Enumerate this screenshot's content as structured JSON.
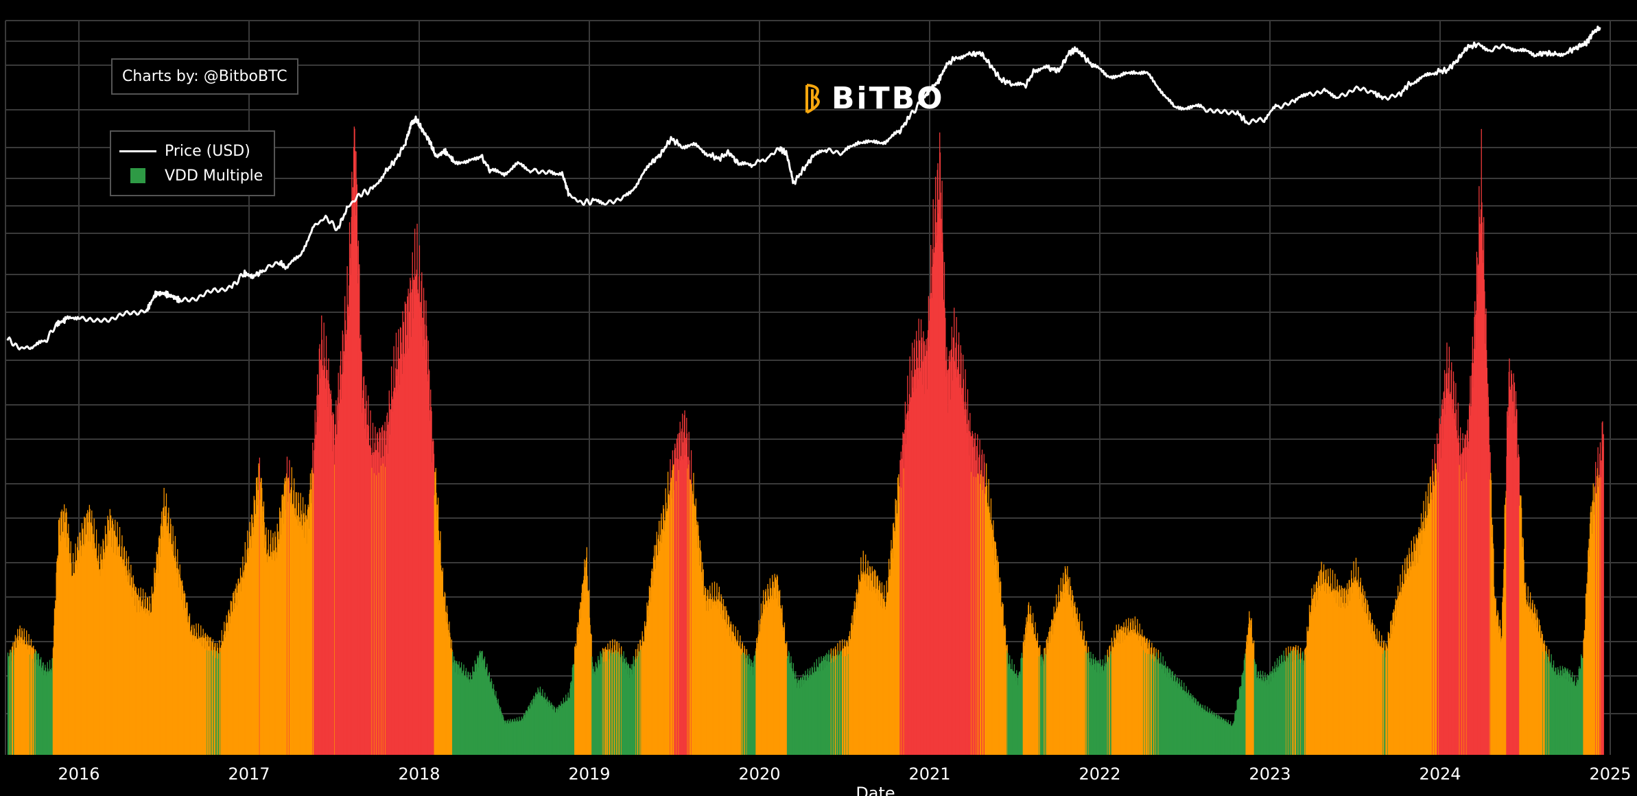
{
  "credit": "Charts by: @BitboBTC",
  "logo_text": "BiTBO",
  "legend": [
    {
      "label": "Price (USD)",
      "kind": "line",
      "color": "#ffffff"
    },
    {
      "label": "VDD Multiple",
      "kind": "bar",
      "color": "#2e9a45"
    }
  ],
  "colors": {
    "background": "#000000",
    "grid": "#3a3a3a",
    "green": "#2e9a45",
    "orange": "#ff9900",
    "red": "#f23a3a",
    "price": "#ffffff",
    "logo_accent": "#f7a70e"
  },
  "chart_data": {
    "type": "bar",
    "xlabel": "Date",
    "xlim": [
      2015.58,
      2025.1
    ],
    "x_ticks": [
      "2016",
      "2017",
      "2018",
      "2019",
      "2020",
      "2021",
      "2022",
      "2023",
      "2024",
      "2025"
    ],
    "grid": true,
    "legend_position": "top-left",
    "series": [
      {
        "name": "VDD Multiple",
        "kind": "bar",
        "color_rule": "green when value < 0.90, orange when value < 2.50, red otherwise",
        "points": [
          [
            2015.58,
            0.82
          ],
          [
            2015.65,
            1.04
          ],
          [
            2015.72,
            0.92
          ],
          [
            2015.8,
            0.72
          ],
          [
            2015.84,
            0.75
          ],
          [
            2015.88,
            1.95
          ],
          [
            2015.92,
            2.05
          ],
          [
            2015.96,
            1.55
          ],
          [
            2016.0,
            1.8
          ],
          [
            2016.06,
            2.05
          ],
          [
            2016.12,
            1.62
          ],
          [
            2016.18,
            2.0
          ],
          [
            2016.26,
            1.7
          ],
          [
            2016.34,
            1.35
          ],
          [
            2016.42,
            1.25
          ],
          [
            2016.5,
            2.15
          ],
          [
            2016.58,
            1.6
          ],
          [
            2016.66,
            1.05
          ],
          [
            2016.74,
            1.0
          ],
          [
            2016.82,
            0.88
          ],
          [
            2016.9,
            1.3
          ],
          [
            2016.96,
            1.55
          ],
          [
            2017.02,
            2.0
          ],
          [
            2017.06,
            2.45
          ],
          [
            2017.1,
            1.75
          ],
          [
            2017.16,
            1.8
          ],
          [
            2017.22,
            2.4
          ],
          [
            2017.28,
            2.1
          ],
          [
            2017.34,
            2.0
          ],
          [
            2017.38,
            2.6
          ],
          [
            2017.42,
            3.5
          ],
          [
            2017.46,
            3.25
          ],
          [
            2017.5,
            2.7
          ],
          [
            2017.54,
            3.3
          ],
          [
            2017.58,
            3.9
          ],
          [
            2017.62,
            5.3
          ],
          [
            2017.66,
            3.2
          ],
          [
            2017.72,
            2.6
          ],
          [
            2017.8,
            2.7
          ],
          [
            2017.86,
            3.3
          ],
          [
            2017.92,
            3.7
          ],
          [
            2017.98,
            4.2
          ],
          [
            2018.04,
            3.6
          ],
          [
            2018.08,
            2.6
          ],
          [
            2018.14,
            1.4
          ],
          [
            2018.2,
            0.8
          ],
          [
            2018.3,
            0.65
          ],
          [
            2018.36,
            0.88
          ],
          [
            2018.42,
            0.62
          ],
          [
            2018.5,
            0.28
          ],
          [
            2018.6,
            0.3
          ],
          [
            2018.7,
            0.55
          ],
          [
            2018.8,
            0.38
          ],
          [
            2018.88,
            0.5
          ],
          [
            2018.94,
            1.2
          ],
          [
            2018.98,
            1.7
          ],
          [
            2019.02,
            0.7
          ],
          [
            2019.08,
            0.88
          ],
          [
            2019.16,
            0.92
          ],
          [
            2019.24,
            0.72
          ],
          [
            2019.32,
            1.02
          ],
          [
            2019.38,
            1.7
          ],
          [
            2019.44,
            2.05
          ],
          [
            2019.5,
            2.55
          ],
          [
            2019.56,
            2.8
          ],
          [
            2019.62,
            2.1
          ],
          [
            2019.68,
            1.35
          ],
          [
            2019.76,
            1.35
          ],
          [
            2019.84,
            1.05
          ],
          [
            2019.9,
            0.9
          ],
          [
            2019.96,
            0.75
          ],
          [
            2020.02,
            1.3
          ],
          [
            2020.1,
            1.5
          ],
          [
            2020.16,
            0.88
          ],
          [
            2020.22,
            0.62
          ],
          [
            2020.3,
            0.7
          ],
          [
            2020.38,
            0.82
          ],
          [
            2020.46,
            0.88
          ],
          [
            2020.52,
            0.95
          ],
          [
            2020.6,
            1.6
          ],
          [
            2020.68,
            1.5
          ],
          [
            2020.74,
            1.3
          ],
          [
            2020.8,
            2.1
          ],
          [
            2020.86,
            2.9
          ],
          [
            2020.9,
            3.3
          ],
          [
            2020.94,
            3.5
          ],
          [
            2020.98,
            3.4
          ],
          [
            2021.02,
            4.4
          ],
          [
            2021.06,
            5.0
          ],
          [
            2021.1,
            3.2
          ],
          [
            2021.14,
            3.55
          ],
          [
            2021.18,
            3.3
          ],
          [
            2021.24,
            2.7
          ],
          [
            2021.32,
            2.4
          ],
          [
            2021.4,
            1.6
          ],
          [
            2021.46,
            0.8
          ],
          [
            2021.52,
            0.65
          ],
          [
            2021.58,
            1.25
          ],
          [
            2021.66,
            0.8
          ],
          [
            2021.74,
            1.25
          ],
          [
            2021.8,
            1.55
          ],
          [
            2021.86,
            1.2
          ],
          [
            2021.94,
            0.82
          ],
          [
            2022.02,
            0.75
          ],
          [
            2022.1,
            1.05
          ],
          [
            2022.2,
            1.1
          ],
          [
            2022.3,
            0.9
          ],
          [
            2022.4,
            0.72
          ],
          [
            2022.5,
            0.55
          ],
          [
            2022.6,
            0.4
          ],
          [
            2022.7,
            0.32
          ],
          [
            2022.78,
            0.25
          ],
          [
            2022.84,
            0.7
          ],
          [
            2022.88,
            1.2
          ],
          [
            2022.92,
            0.68
          ],
          [
            2022.98,
            0.65
          ],
          [
            2023.06,
            0.8
          ],
          [
            2023.14,
            0.9
          ],
          [
            2023.2,
            0.82
          ],
          [
            2023.24,
            1.3
          ],
          [
            2023.3,
            1.55
          ],
          [
            2023.36,
            1.45
          ],
          [
            2023.44,
            1.35
          ],
          [
            2023.5,
            1.55
          ],
          [
            2023.56,
            1.3
          ],
          [
            2023.62,
            1.0
          ],
          [
            2023.68,
            0.9
          ],
          [
            2023.74,
            1.3
          ],
          [
            2023.8,
            1.6
          ],
          [
            2023.86,
            1.8
          ],
          [
            2023.92,
            2.1
          ],
          [
            2023.98,
            2.55
          ],
          [
            2024.04,
            3.3
          ],
          [
            2024.08,
            3.05
          ],
          [
            2024.12,
            2.55
          ],
          [
            2024.16,
            2.7
          ],
          [
            2024.2,
            3.6
          ],
          [
            2024.24,
            4.9
          ],
          [
            2024.28,
            3.0
          ],
          [
            2024.32,
            1.3
          ],
          [
            2024.36,
            1.0
          ],
          [
            2024.4,
            3.2
          ],
          [
            2024.44,
            3.05
          ],
          [
            2024.5,
            1.35
          ],
          [
            2024.56,
            1.2
          ],
          [
            2024.62,
            0.88
          ],
          [
            2024.68,
            0.7
          ],
          [
            2024.74,
            0.72
          ],
          [
            2024.8,
            0.6
          ],
          [
            2024.84,
            0.9
          ],
          [
            2024.88,
            2.0
          ],
          [
            2024.92,
            2.4
          ],
          [
            2024.94,
            2.5
          ],
          [
            2024.96,
            2.85
          ]
        ]
      },
      {
        "name": "Price (USD)",
        "kind": "line",
        "scale": "log",
        "points": [
          [
            2015.58,
            280
          ],
          [
            2015.65,
            235
          ],
          [
            2015.72,
            240
          ],
          [
            2015.8,
            265
          ],
          [
            2015.87,
            370
          ],
          [
            2015.92,
            400
          ],
          [
            2016.0,
            430
          ],
          [
            2016.1,
            385
          ],
          [
            2016.2,
            415
          ],
          [
            2016.3,
            455
          ],
          [
            2016.4,
            480
          ],
          [
            2016.45,
            650
          ],
          [
            2016.5,
            660
          ],
          [
            2016.55,
            620
          ],
          [
            2016.6,
            570
          ],
          [
            2016.7,
            610
          ],
          [
            2016.8,
            700
          ],
          [
            2016.9,
            740
          ],
          [
            2016.97,
            960
          ],
          [
            2017.02,
            900
          ],
          [
            2017.08,
            1000
          ],
          [
            2017.18,
            1180
          ],
          [
            2017.22,
            1050
          ],
          [
            2017.3,
            1350
          ],
          [
            2017.38,
            2300
          ],
          [
            2017.45,
            2750
          ],
          [
            2017.52,
            2200
          ],
          [
            2017.58,
            3300
          ],
          [
            2017.65,
            4200
          ],
          [
            2017.72,
            4600
          ],
          [
            2017.8,
            6400
          ],
          [
            2017.86,
            8000
          ],
          [
            2017.92,
            11000
          ],
          [
            2017.95,
            15500
          ],
          [
            2017.98,
            17500
          ],
          [
            2018.02,
            14000
          ],
          [
            2018.06,
            11500
          ],
          [
            2018.1,
            8500
          ],
          [
            2018.15,
            9500
          ],
          [
            2018.2,
            8000
          ],
          [
            2018.28,
            7500
          ],
          [
            2018.36,
            8800
          ],
          [
            2018.42,
            6500
          ],
          [
            2018.5,
            6300
          ],
          [
            2018.58,
            7400
          ],
          [
            2018.66,
            6600
          ],
          [
            2018.76,
            6500
          ],
          [
            2018.84,
            6300
          ],
          [
            2018.88,
            4200
          ],
          [
            2018.95,
            3600
          ],
          [
            2019.02,
            3700
          ],
          [
            2019.1,
            3600
          ],
          [
            2019.2,
            4000
          ],
          [
            2019.28,
            5100
          ],
          [
            2019.36,
            7500
          ],
          [
            2019.42,
            9000
          ],
          [
            2019.48,
            12000
          ],
          [
            2019.54,
            10500
          ],
          [
            2019.62,
            10500
          ],
          [
            2019.7,
            9000
          ],
          [
            2019.76,
            8200
          ],
          [
            2019.82,
            9300
          ],
          [
            2019.88,
            7400
          ],
          [
            2019.96,
            7200
          ],
          [
            2020.05,
            8500
          ],
          [
            2020.12,
            10000
          ],
          [
            2020.16,
            9000
          ],
          [
            2020.2,
            5200
          ],
          [
            2020.26,
            6800
          ],
          [
            2020.32,
            8800
          ],
          [
            2020.4,
            9500
          ],
          [
            2020.5,
            9300
          ],
          [
            2020.58,
            11500
          ],
          [
            2020.66,
            11000
          ],
          [
            2020.74,
            11500
          ],
          [
            2020.82,
            13500
          ],
          [
            2020.88,
            18000
          ],
          [
            2020.95,
            24000
          ],
          [
            2021.0,
            30000
          ],
          [
            2021.05,
            35000
          ],
          [
            2021.1,
            48000
          ],
          [
            2021.16,
            56000
          ],
          [
            2021.24,
            58000
          ],
          [
            2021.3,
            60000
          ],
          [
            2021.36,
            47000
          ],
          [
            2021.42,
            36000
          ],
          [
            2021.48,
            34000
          ],
          [
            2021.56,
            32000
          ],
          [
            2021.62,
            44000
          ],
          [
            2021.7,
            45000
          ],
          [
            2021.76,
            43000
          ],
          [
            2021.82,
            60000
          ],
          [
            2021.86,
            64000
          ],
          [
            2021.9,
            57000
          ],
          [
            2021.96,
            47000
          ],
          [
            2022.04,
            40000
          ],
          [
            2022.12,
            38000
          ],
          [
            2022.2,
            43000
          ],
          [
            2022.28,
            40000
          ],
          [
            2022.36,
            30000
          ],
          [
            2022.44,
            21000
          ],
          [
            2022.52,
            22000
          ],
          [
            2022.6,
            21500
          ],
          [
            2022.7,
            19500
          ],
          [
            2022.8,
            20000
          ],
          [
            2022.86,
            16500
          ],
          [
            2022.96,
            16800
          ],
          [
            2023.04,
            22000
          ],
          [
            2023.14,
            23500
          ],
          [
            2023.22,
            28000
          ],
          [
            2023.32,
            29000
          ],
          [
            2023.4,
            26500
          ],
          [
            2023.5,
            30500
          ],
          [
            2023.6,
            29000
          ],
          [
            2023.66,
            26000
          ],
          [
            2023.76,
            27000
          ],
          [
            2023.82,
            34000
          ],
          [
            2023.9,
            37500
          ],
          [
            2023.98,
            42500
          ],
          [
            2024.04,
            43000
          ],
          [
            2024.1,
            52000
          ],
          [
            2024.16,
            67000
          ],
          [
            2024.22,
            70000
          ],
          [
            2024.3,
            64000
          ],
          [
            2024.4,
            68000
          ],
          [
            2024.48,
            62000
          ],
          [
            2024.56,
            58000
          ],
          [
            2024.62,
            60000
          ],
          [
            2024.68,
            58000
          ],
          [
            2024.76,
            62000
          ],
          [
            2024.82,
            68000
          ],
          [
            2024.86,
            72000
          ],
          [
            2024.9,
            88000
          ],
          [
            2024.94,
            97000
          ]
        ]
      }
    ]
  }
}
